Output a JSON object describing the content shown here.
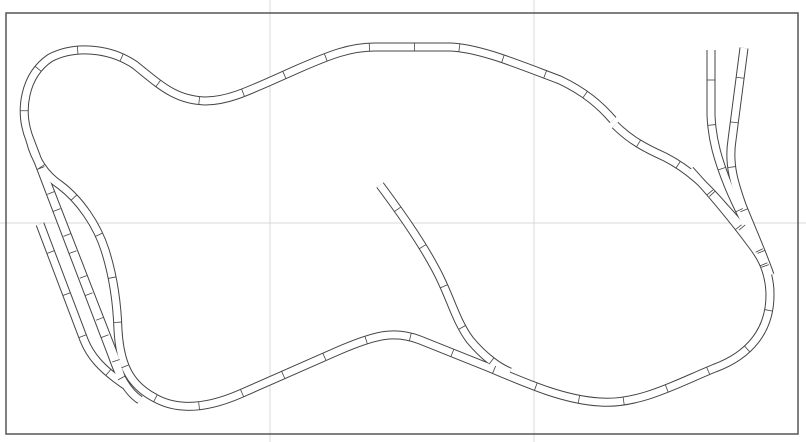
{
  "colors": {
    "background": "#ffffff",
    "track_outline": "#444444",
    "grid": "#d8d8d8",
    "frame": "#555555"
  }
}
